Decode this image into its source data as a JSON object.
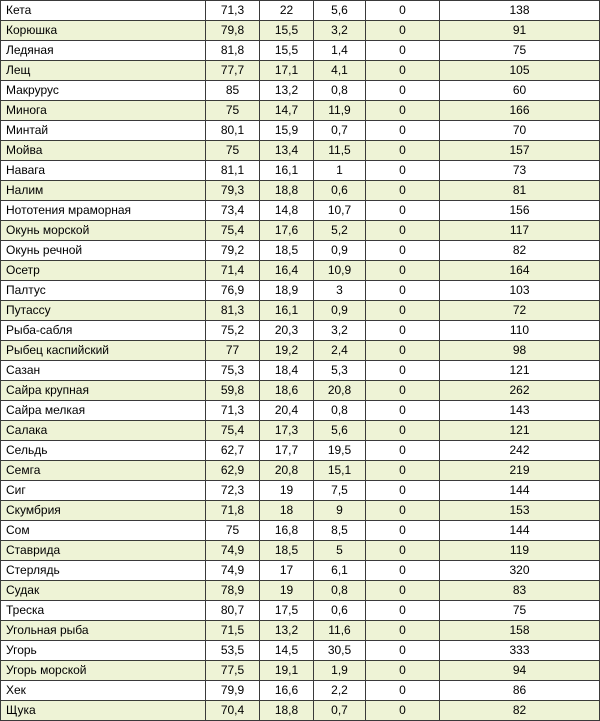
{
  "colors": {
    "row_alt": "#eef3d6",
    "row_plain": "#ffffff",
    "border": "#3a3a3a"
  },
  "rows": [
    [
      "Кета",
      "71,3",
      "22",
      "5,6",
      "0",
      "138"
    ],
    [
      "Корюшка",
      "79,8",
      "15,5",
      "3,2",
      "0",
      "91"
    ],
    [
      "Ледяная",
      "81,8",
      "15,5",
      "1,4",
      "0",
      "75"
    ],
    [
      "Лещ",
      "77,7",
      "17,1",
      "4,1",
      "0",
      "105"
    ],
    [
      "Макрурус",
      "85",
      "13,2",
      "0,8",
      "0",
      "60"
    ],
    [
      "Минога",
      "75",
      "14,7",
      "11,9",
      "0",
      "166"
    ],
    [
      "Минтай",
      "80,1",
      "15,9",
      "0,7",
      "0",
      "70"
    ],
    [
      "Мойва",
      "75",
      "13,4",
      "11,5",
      "0",
      "157"
    ],
    [
      "Навага",
      "81,1",
      "16,1",
      "1",
      "0",
      "73"
    ],
    [
      "Налим",
      "79,3",
      "18,8",
      "0,6",
      "0",
      "81"
    ],
    [
      "Нототения мраморная",
      "73,4",
      "14,8",
      "10,7",
      "0",
      "156"
    ],
    [
      "Окунь морской",
      "75,4",
      "17,6",
      "5,2",
      "0",
      "117"
    ],
    [
      "Окунь речной",
      "79,2",
      "18,5",
      "0,9",
      "0",
      "82"
    ],
    [
      "Осетр",
      "71,4",
      "16,4",
      "10,9",
      "0",
      "164"
    ],
    [
      "Палтус",
      "76,9",
      "18,9",
      "3",
      "0",
      "103"
    ],
    [
      "Путассу",
      "81,3",
      "16,1",
      "0,9",
      "0",
      "72"
    ],
    [
      "Рыба-сабля",
      "75,2",
      "20,3",
      "3,2",
      "0",
      "110"
    ],
    [
      "Рыбец каспийский",
      "77",
      "19,2",
      "2,4",
      "0",
      "98"
    ],
    [
      "Сазан",
      "75,3",
      "18,4",
      "5,3",
      "0",
      "121"
    ],
    [
      "Сайра крупная",
      "59,8",
      "18,6",
      "20,8",
      "0",
      "262"
    ],
    [
      "Сайра мелкая",
      "71,3",
      "20,4",
      "0,8",
      "0",
      "143"
    ],
    [
      "Салака",
      "75,4",
      "17,3",
      "5,6",
      "0",
      "121"
    ],
    [
      "Сельдь",
      "62,7",
      "17,7",
      "19,5",
      "0",
      "242"
    ],
    [
      "Семга",
      "62,9",
      "20,8",
      "15,1",
      "0",
      "219"
    ],
    [
      "Сиг",
      "72,3",
      "19",
      "7,5",
      "0",
      "144"
    ],
    [
      "Скумбрия",
      "71,8",
      "18",
      "9",
      "0",
      "153"
    ],
    [
      "Сом",
      "75",
      "16,8",
      "8,5",
      "0",
      "144"
    ],
    [
      "Ставрида",
      "74,9",
      "18,5",
      "5",
      "0",
      "119"
    ],
    [
      "Стерлядь",
      "74,9",
      "17",
      "6,1",
      "0",
      "320"
    ],
    [
      "Судак",
      "78,9",
      "19",
      "0,8",
      "0",
      "83"
    ],
    [
      "Треска",
      "80,7",
      "17,5",
      "0,6",
      "0",
      "75"
    ],
    [
      "Угольная рыба",
      "71,5",
      "13,2",
      "11,6",
      "0",
      "158"
    ],
    [
      "Угорь",
      "53,5",
      "14,5",
      "30,5",
      "0",
      "333"
    ],
    [
      "Угорь морской",
      "77,5",
      "19,1",
      "1,9",
      "0",
      "94"
    ],
    [
      "Хек",
      "79,9",
      "16,6",
      "2,2",
      "0",
      "86"
    ],
    [
      "Щука",
      "70,4",
      "18,8",
      "0,7",
      "0",
      "82"
    ]
  ]
}
